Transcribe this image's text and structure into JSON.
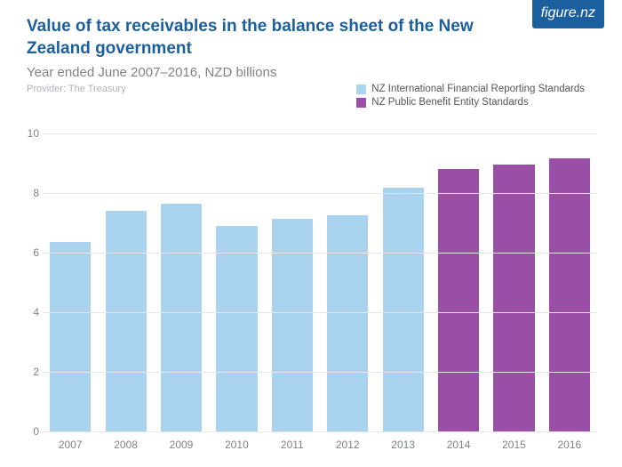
{
  "logo_text": "figure.nz",
  "title": "Value of tax receivables in the balance sheet of the New Zealand government",
  "subtitle": "Year ended June 2007–2016, NZD billions",
  "provider": "Provider: The Treasury",
  "legend": [
    {
      "label": "NZ International Financial Reporting Standards",
      "color": "#a9d3ee"
    },
    {
      "label": "NZ Public Benefit Entity Standards",
      "color": "#9a4fa6"
    }
  ],
  "chart": {
    "type": "bar",
    "ylim": [
      0,
      10
    ],
    "ytick_step": 2,
    "yticks": [
      0,
      2,
      4,
      6,
      8,
      10
    ],
    "grid_color": "#e4e5e7",
    "background_color": "#ffffff",
    "axis_label_color": "#808285",
    "axis_label_fontsize": 12,
    "bar_width_ratio": 0.74,
    "series_colors": {
      "ifrs": "#a9d3ee",
      "pbe": "#9a4fa6"
    },
    "data": [
      {
        "year": "2007",
        "value": 6.35,
        "series": "ifrs"
      },
      {
        "year": "2008",
        "value": 7.4,
        "series": "ifrs"
      },
      {
        "year": "2009",
        "value": 7.65,
        "series": "ifrs"
      },
      {
        "year": "2010",
        "value": 6.9,
        "series": "ifrs"
      },
      {
        "year": "2011",
        "value": 7.12,
        "series": "ifrs"
      },
      {
        "year": "2012",
        "value": 7.26,
        "series": "ifrs"
      },
      {
        "year": "2013",
        "value": 8.18,
        "series": "ifrs"
      },
      {
        "year": "2014",
        "value": 8.8,
        "series": "pbe"
      },
      {
        "year": "2015",
        "value": 8.95,
        "series": "pbe"
      },
      {
        "year": "2016",
        "value": 9.15,
        "series": "pbe"
      }
    ]
  }
}
